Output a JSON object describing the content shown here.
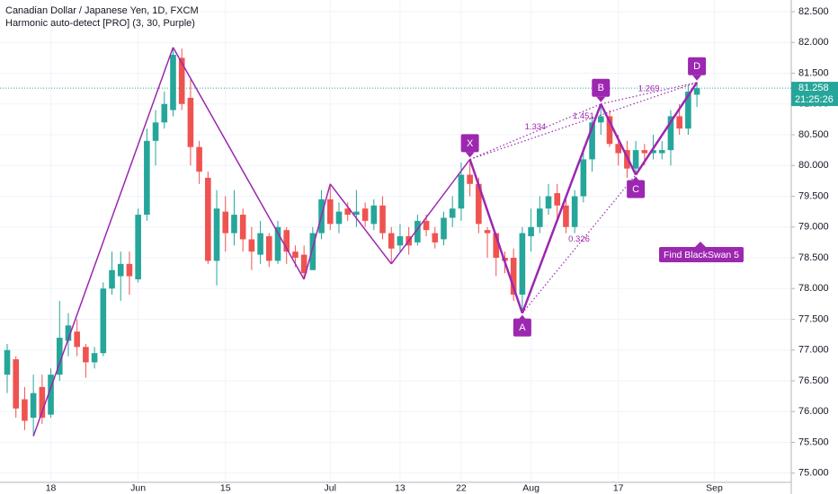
{
  "chart_data": {
    "type": "candlestick",
    "title": "Canadian Dollar / Japanese Yen, 1D, FXCM",
    "subtitle": "Harmonic auto-detect [PRO] (3, 30, Purple)",
    "categories": [
      null,
      null,
      null,
      null,
      null,
      "18",
      null,
      null,
      null,
      null,
      null,
      null,
      null,
      null,
      null,
      "Jun",
      null,
      null,
      null,
      null,
      null,
      null,
      null,
      null,
      null,
      "15",
      null,
      null,
      null,
      null,
      null,
      null,
      null,
      null,
      null,
      null,
      null,
      "Jul",
      null,
      null,
      null,
      null,
      null,
      null,
      null,
      "13",
      null,
      null,
      null,
      null,
      null,
      null,
      "22",
      null,
      null,
      null,
      null,
      null,
      null,
      null,
      "Aug",
      null,
      null,
      null,
      null,
      null,
      null,
      null,
      null,
      null,
      "17",
      null,
      null,
      null,
      null,
      null,
      null,
      null,
      null,
      null,
      null,
      "Sep"
    ],
    "open": [
      76.6,
      76.85,
      76.2,
      75.9,
      76.4,
      75.95,
      76.6,
      77.15,
      77.3,
      77.05,
      76.8,
      76.95,
      78.0,
      78.2,
      78.4,
      78.15,
      79.2,
      80.4,
      80.7,
      80.9,
      81.75,
      81.1,
      80.3,
      79.8,
      78.45,
      79.25,
      78.9,
      79.2,
      78.8,
      78.55,
      78.85,
      78.45,
      78.95,
      78.6,
      78.55,
      78.3,
      78.9,
      79.45,
      79.05,
      79.3,
      79.2,
      79.3,
      79.05,
      79.35,
      78.9,
      78.7,
      78.85,
      78.75,
      79.1,
      78.9,
      78.8,
      79.15,
      79.3,
      79.85,
      79.7,
      78.95,
      78.9,
      78.5,
      78.5,
      77.9,
      78.85,
      79.0,
      79.3,
      79.55,
      79.35,
      79.0,
      79.5,
      80.1,
      80.7,
      80.8,
      80.35,
      80.25,
      79.95,
      80.25,
      80.2,
      80.2,
      80.25,
      80.8,
      80.6,
      81.15,
      null,
      null
    ],
    "high": [
      77.1,
      76.9,
      76.4,
      76.6,
      76.6,
      76.7,
      77.8,
      77.6,
      77.5,
      77.1,
      77.05,
      78.1,
      78.6,
      78.6,
      78.6,
      79.3,
      80.6,
      80.9,
      81.2,
      81.92,
      81.9,
      81.4,
      80.4,
      79.9,
      79.6,
      79.5,
      79.6,
      79.3,
      79.0,
      79.1,
      78.9,
      79.1,
      79.0,
      78.7,
      78.7,
      79.0,
      79.6,
      79.7,
      79.4,
      79.4,
      79.6,
      79.4,
      79.45,
      79.5,
      79.0,
      79.05,
      79.0,
      79.2,
      79.2,
      79.0,
      79.25,
      79.5,
      80.05,
      80.1,
      79.8,
      79.0,
      78.9,
      78.6,
      78.65,
      79.0,
      79.3,
      79.5,
      79.7,
      79.7,
      79.45,
      79.6,
      80.3,
      80.8,
      81.0,
      80.9,
      80.5,
      80.4,
      80.4,
      80.35,
      80.5,
      80.4,
      80.9,
      81.0,
      81.3,
      81.35,
      null,
      null
    ],
    "low": [
      76.3,
      75.9,
      75.7,
      75.6,
      75.8,
      75.9,
      76.5,
      76.9,
      76.9,
      76.55,
      76.7,
      76.9,
      77.9,
      77.8,
      77.9,
      78.1,
      79.1,
      80.0,
      80.6,
      80.8,
      80.9,
      80.0,
      79.7,
      78.4,
      78.05,
      78.6,
      78.7,
      78.6,
      78.3,
      78.4,
      78.35,
      78.4,
      78.4,
      78.35,
      78.15,
      78.3,
      78.8,
      78.95,
      78.9,
      79.1,
      79.0,
      79.0,
      78.95,
      78.8,
      78.4,
      78.6,
      78.55,
      78.7,
      78.85,
      78.65,
      78.7,
      79.0,
      79.1,
      79.5,
      78.9,
      78.5,
      78.2,
      78.25,
      77.8,
      77.6,
      78.6,
      78.9,
      79.2,
      79.1,
      78.9,
      78.9,
      79.4,
      79.9,
      80.5,
      80.3,
      80.0,
      79.8,
      79.85,
      80.0,
      80.1,
      80.1,
      80.0,
      80.5,
      80.5,
      80.95,
      null,
      null
    ],
    "close": [
      77.0,
      76.05,
      75.85,
      76.3,
      75.9,
      76.6,
      77.2,
      77.4,
      77.05,
      76.8,
      76.95,
      78.0,
      78.3,
      78.4,
      78.2,
      79.2,
      80.4,
      80.7,
      81.0,
      81.8,
      81.0,
      80.3,
      79.9,
      78.45,
      79.3,
      78.9,
      79.2,
      78.8,
      78.6,
      78.9,
      78.45,
      79.0,
      78.6,
      78.5,
      78.25,
      78.9,
      79.45,
      79.05,
      79.25,
      79.2,
      79.25,
      79.1,
      79.35,
      78.9,
      78.65,
      78.85,
      78.7,
      79.1,
      78.95,
      78.75,
      79.15,
      79.3,
      79.85,
      79.7,
      79.05,
      78.9,
      78.5,
      78.45,
      77.9,
      78.9,
      79.0,
      79.3,
      79.5,
      79.35,
      79.0,
      79.5,
      80.1,
      80.7,
      80.8,
      80.35,
      80.2,
      79.95,
      80.25,
      80.2,
      80.25,
      80.25,
      80.8,
      80.6,
      81.2,
      81.258,
      null,
      null
    ],
    "up_color": "#26a69a",
    "down_color": "#ef5350",
    "zigzag": {
      "color": "#9c27b0",
      "values": [
        null,
        null,
        null,
        75.6,
        null,
        null,
        null,
        null,
        null,
        null,
        null,
        null,
        null,
        null,
        null,
        null,
        null,
        null,
        null,
        81.92,
        null,
        null,
        null,
        null,
        null,
        null,
        null,
        null,
        null,
        null,
        null,
        null,
        null,
        null,
        78.15,
        null,
        null,
        79.7,
        null,
        null,
        null,
        null,
        null,
        null,
        78.4,
        null,
        null,
        null,
        null,
        null,
        null,
        null,
        null,
        80.1,
        null,
        null,
        null,
        null,
        null,
        null,
        null,
        null,
        null,
        null,
        null,
        null,
        null,
        null,
        null,
        null,
        null,
        null,
        null,
        null,
        null,
        null,
        null,
        null,
        null,
        null,
        null,
        null
      ]
    },
    "pattern": {
      "color": "#9c27b0",
      "labels": [
        "X",
        "A",
        "B",
        "C",
        "D"
      ],
      "values": [
        null,
        null,
        null,
        null,
        null,
        null,
        null,
        null,
        null,
        null,
        null,
        null,
        null,
        null,
        null,
        null,
        null,
        null,
        null,
        null,
        null,
        null,
        null,
        null,
        null,
        null,
        null,
        null,
        null,
        null,
        null,
        null,
        null,
        null,
        null,
        null,
        null,
        null,
        null,
        null,
        null,
        null,
        null,
        null,
        null,
        null,
        null,
        null,
        null,
        null,
        null,
        null,
        null,
        80.1,
        null,
        null,
        null,
        null,
        null,
        77.6,
        null,
        null,
        null,
        null,
        null,
        null,
        null,
        null,
        81.0,
        null,
        null,
        null,
        79.85,
        null,
        null,
        null,
        null,
        null,
        null,
        81.35,
        null,
        null
      ]
    },
    "ratios": [
      1.334,
      1.451,
      1.269,
      0.326
    ],
    "annotation": "Find BlackSwan 5",
    "last_price": 81.258,
    "countdown": "21:25:26",
    "ylim": [
      74.85,
      82.69
    ],
    "yticks": [
      {
        "value": 75,
        "label": "75.000"
      },
      {
        "value": 75.5,
        "label": "75.500"
      },
      {
        "value": 76,
        "label": "76.000"
      },
      {
        "value": 76.5,
        "label": "76.500"
      },
      {
        "value": 77,
        "label": "77.000"
      },
      {
        "value": 77.5,
        "label": "77.500"
      },
      {
        "value": 78,
        "label": "78.000"
      },
      {
        "value": 78.5,
        "label": "78.500"
      },
      {
        "value": 79,
        "label": "79.000"
      },
      {
        "value": 79.5,
        "label": "79.500"
      },
      {
        "value": 80,
        "label": "80.000"
      },
      {
        "value": 80.5,
        "label": "80.500"
      },
      {
        "value": 81,
        "label": "81.000"
      },
      {
        "value": 81.5,
        "label": "81.500"
      },
      {
        "value": 82,
        "label": "82.000"
      },
      {
        "value": 82.5,
        "label": "82.500"
      }
    ],
    "grid": true
  }
}
